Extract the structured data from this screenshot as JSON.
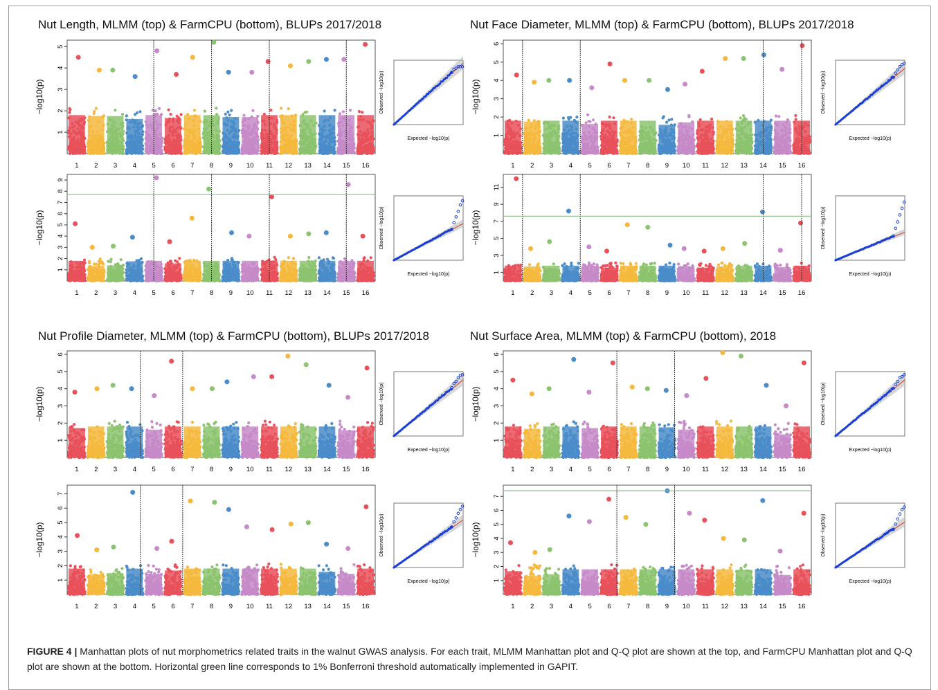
{
  "figure": {
    "caption_lead": "FIGURE 4 |",
    "caption_text": " Manhattan plots of nut morphometrics related traits in the walnut GWAS analysis. For each trait, MLMM Manhattan plot and Q-Q plot are shown at the top, and FarmCPU Manhattan plot and Q-Q plot are shown at the bottom. Horizontal green line corresponds to 1% Bonferroni threshold automatically implemented in GAPIT."
  },
  "colors": {
    "chromosome_palette": [
      "#e8505b",
      "#f5b83d",
      "#8cc36e",
      "#4a8cc9",
      "#c68ac9"
    ],
    "threshold_line": "#8fbf8f",
    "marker_line": "#333333",
    "qq_points": "#1a3fd6",
    "qq_ci": "#bbbbbb",
    "qq_line": "#d33a2c"
  },
  "common": {
    "y_axis_label": "−log10(p)",
    "chromosomes": [
      "1",
      "2",
      "3",
      "4",
      "5",
      "6",
      "7",
      "8",
      "9",
      "10",
      "11",
      "12",
      "13",
      "14",
      "15",
      "16"
    ],
    "qq_x_label": "Expected −log10(p)",
    "qq_y_label": "Observed −log10(p)"
  },
  "chart_data": [
    {
      "type": "scatter",
      "title": "Nut Length, MLMM (top) & FarmCPU (bottom), BLUPs 2017/2018",
      "top": {
        "model": "MLMM",
        "ylim": [
          0,
          5.3
        ],
        "yticks": [
          "1",
          "2",
          "3",
          "4",
          "5"
        ],
        "marker_chromosomes": [
          5,
          8,
          11,
          15
        ],
        "chromosome_peaks": [
          4.5,
          3.9,
          3.9,
          3.6,
          4.8,
          3.7,
          4.5,
          5.2,
          3.8,
          3.8,
          4.3,
          4.1,
          4.3,
          4.4,
          4.4,
          5.1
        ],
        "threshold": null
      },
      "bottom": {
        "model": "FarmCPU",
        "ylim": [
          0,
          9.5
        ],
        "yticks": [
          "1",
          "2",
          "3",
          "4",
          "5",
          "6",
          "7",
          "8",
          "9"
        ],
        "marker_chromosomes": [
          5,
          8,
          11,
          15
        ],
        "chromosome_peaks": [
          5.1,
          3.0,
          3.1,
          3.9,
          9.2,
          3.5,
          5.6,
          8.2,
          4.3,
          4.0,
          7.5,
          4.0,
          4.2,
          4.3,
          8.6,
          4.0
        ],
        "threshold": 7.7
      },
      "qq_top_max": 5.2,
      "qq_bottom_max": 9.2
    },
    {
      "type": "scatter",
      "title": "Nut Face Diameter, MLMM (top) & FarmCPU (bottom), BLUPs 2017/2018",
      "top": {
        "model": "MLMM",
        "ylim": [
          0,
          6.2
        ],
        "yticks": [
          "1",
          "2",
          "3",
          "4",
          "5",
          "6"
        ],
        "marker_chromosomes": [
          1.5,
          4.5,
          14,
          16
        ],
        "chromosome_peaks": [
          4.3,
          3.9,
          4.0,
          4.0,
          3.6,
          4.9,
          4.0,
          4.0,
          3.5,
          3.8,
          4.5,
          5.2,
          5.2,
          5.4,
          4.6,
          5.9
        ],
        "threshold": null
      },
      "bottom": {
        "model": "FarmCPU",
        "ylim": [
          0,
          12.5
        ],
        "yticks": [
          "1",
          "3",
          "5",
          "7",
          "9",
          "11"
        ],
        "marker_chromosomes": [
          1.5,
          4.5,
          14,
          16
        ],
        "chromosome_peaks": [
          12.0,
          3.8,
          4.6,
          8.2,
          4.0,
          3.5,
          6.6,
          6.3,
          4.2,
          3.8,
          3.5,
          3.8,
          4.4,
          8.1,
          3.6,
          6.8
        ],
        "threshold": 7.6
      },
      "qq_top_max": 6.0,
      "qq_bottom_max": 12.0
    },
    {
      "type": "scatter",
      "title": "Nut Profile Diameter, MLMM (top) & FarmCPU (bottom), BLUPs 2017/2018",
      "top": {
        "model": "MLMM",
        "ylim": [
          0,
          6.2
        ],
        "yticks": [
          "1",
          "2",
          "3",
          "4",
          "5",
          "6"
        ],
        "marker_chromosomes": [
          4.3,
          6.5
        ],
        "chromosome_peaks": [
          3.8,
          4.0,
          4.2,
          4.0,
          3.6,
          5.6,
          4.0,
          4.0,
          4.4,
          4.7,
          4.7,
          5.9,
          5.4,
          4.2,
          3.5,
          5.2
        ],
        "threshold": null
      },
      "bottom": {
        "model": "FarmCPU",
        "ylim": [
          0,
          7.6
        ],
        "yticks": [
          "1",
          "2",
          "3",
          "4",
          "5",
          "6",
          "7"
        ],
        "marker_chromosomes": [
          4.3,
          6.5
        ],
        "chromosome_peaks": [
          4.1,
          3.1,
          3.3,
          7.1,
          3.2,
          3.7,
          6.5,
          6.4,
          5.9,
          4.7,
          4.5,
          4.9,
          5.0,
          3.5,
          3.2,
          6.1
        ],
        "threshold": null
      },
      "qq_top_max": 6.0,
      "qq_bottom_max": 7.1
    },
    {
      "type": "scatter",
      "title": "Nut Surface Area, MLMM (top) & FarmCPU (bottom), 2018",
      "top": {
        "model": "MLMM",
        "ylim": [
          0,
          6.2
        ],
        "yticks": [
          "1",
          "2",
          "3",
          "4",
          "5",
          "6"
        ],
        "marker_chromosomes": [
          6.4,
          9.4
        ],
        "chromosome_peaks": [
          4.5,
          3.7,
          4.0,
          5.7,
          3.8,
          5.5,
          4.1,
          4.0,
          3.9,
          3.6,
          4.6,
          6.1,
          5.9,
          4.2,
          3.0,
          5.5
        ],
        "threshold": null
      },
      "bottom": {
        "model": "FarmCPU",
        "ylim": [
          0,
          7.8
        ],
        "yticks": [
          "1",
          "2",
          "3",
          "4",
          "5",
          "6",
          "7"
        ],
        "marker_chromosomes": [
          6.4,
          9.4
        ],
        "chromosome_peaks": [
          3.7,
          3.0,
          3.2,
          5.6,
          5.2,
          6.8,
          5.5,
          5.0,
          7.4,
          5.8,
          5.3,
          4.0,
          3.9,
          6.7,
          3.1,
          5.8
        ],
        "threshold": 7.4
      },
      "qq_top_max": 6.0,
      "qq_bottom_max": 7.4
    }
  ]
}
